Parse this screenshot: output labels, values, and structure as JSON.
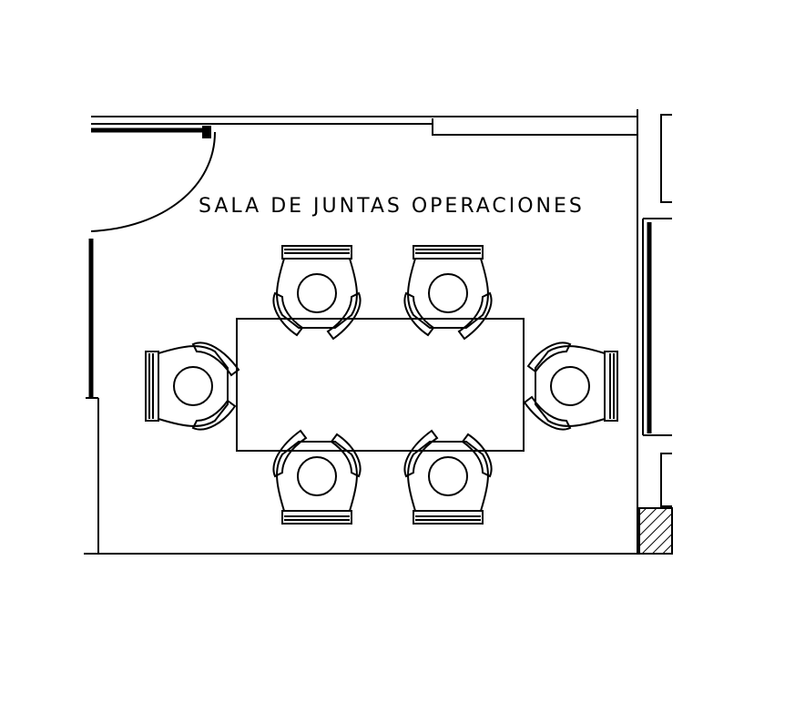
{
  "plan": {
    "room_label": "SALA DE JUNTAS OPERACIONES",
    "line_color": "#000000",
    "background_color": "#ffffff"
  }
}
